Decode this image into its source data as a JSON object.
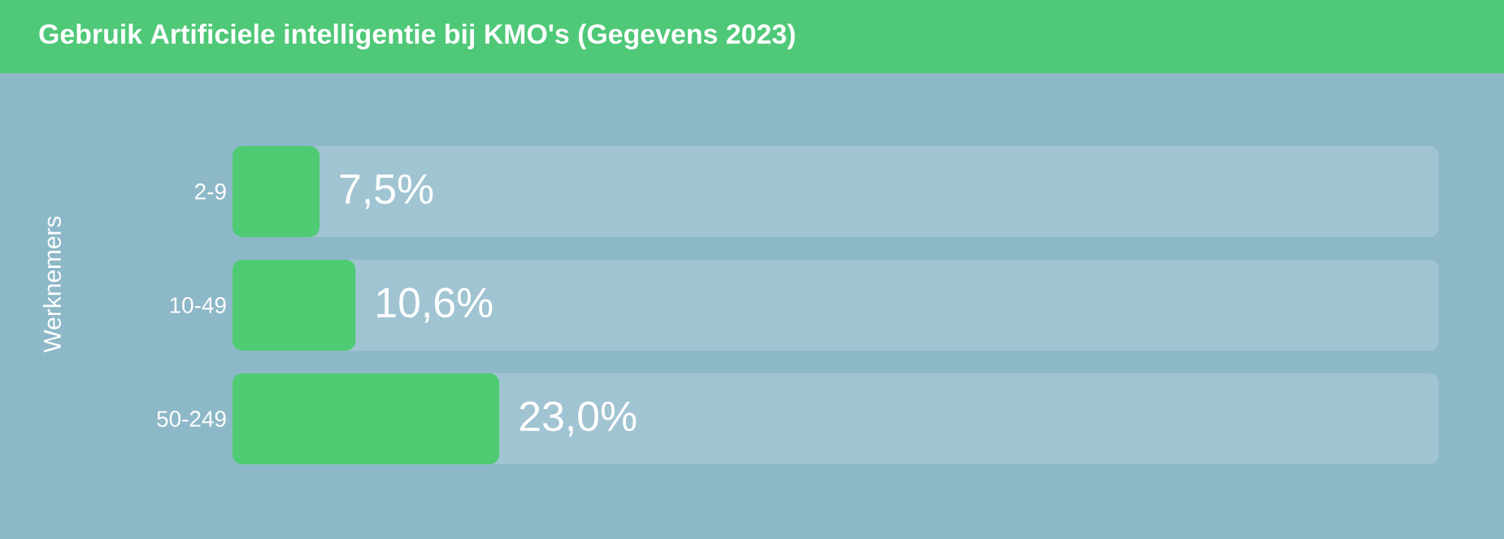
{
  "chart_data": {
    "type": "bar",
    "orientation": "horizontal",
    "title": "Gebruik Artificiele intelligentie bij KMO's (Gegevens 2023)",
    "ylabel": "Werknemers",
    "categories": [
      "2-9",
      "10-49",
      "50-249"
    ],
    "values": [
      7.5,
      10.6,
      23.0
    ],
    "value_labels": [
      "7,5%",
      "10,6%",
      "23,0%"
    ],
    "color": "#4ecb73",
    "xlim": [
      0,
      104
    ],
    "tick_labels": "y"
  }
}
